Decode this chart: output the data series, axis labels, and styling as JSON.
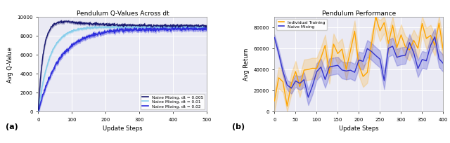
{
  "fig_width": 6.4,
  "fig_height": 2.05,
  "dpi": 100,
  "left_title": "Pendulum Q-Values Across dt",
  "left_xlabel": "Update Steps",
  "left_ylabel": "Avg Q-Value",
  "left_xlim": [
    0,
    500
  ],
  "left_ylim": [
    0,
    10000
  ],
  "left_yticks": [
    0,
    2000,
    4000,
    6000,
    8000,
    10000
  ],
  "left_xticks": [
    0,
    100,
    200,
    300,
    400,
    500
  ],
  "right_title": "Pendulum Performance",
  "right_xlabel": "Update Steps",
  "right_ylabel": "Avg Return",
  "right_xlim": [
    0,
    400
  ],
  "right_ylim": [
    0,
    90000
  ],
  "right_yticks": [
    0,
    20000,
    40000,
    60000,
    80000
  ],
  "right_xticks": [
    0,
    50,
    100,
    150,
    200,
    250,
    300,
    350,
    400
  ],
  "color_dt005": "#191970",
  "color_dt01": "#87CEEB",
  "color_dt02": "#3030DD",
  "color_individual": "#FFA500",
  "color_naive": "#3535CC",
  "legend_left": [
    {
      "label": "Naive Mixing, dt = 0.005",
      "color": "#191970"
    },
    {
      "label": "Naive Mixing, dt = 0.01",
      "color": "#87CEEB"
    },
    {
      "label": "Naive Mixing, dt = 0.02",
      "color": "#3030DD"
    }
  ],
  "legend_right": [
    {
      "label": "Individual Training",
      "color": "#FFA500"
    },
    {
      "label": "Naive Mixing",
      "color": "#3535CC"
    }
  ],
  "label_a": "(a)",
  "label_b": "(b)"
}
